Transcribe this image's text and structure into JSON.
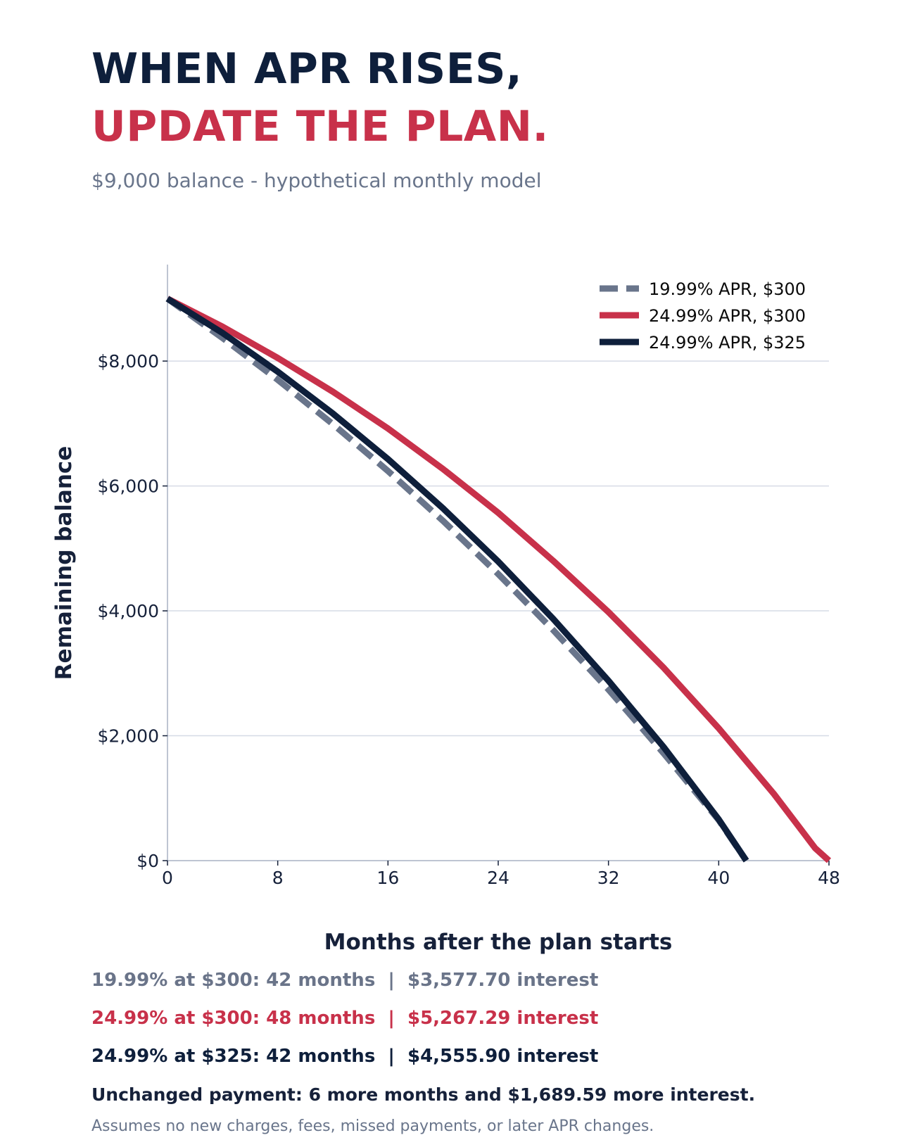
{
  "header": {
    "title_line1": "WHEN APR RISES,",
    "title_line2": "UPDATE THE PLAN.",
    "subtitle": "$9,000 balance - hypothetical monthly model"
  },
  "colors": {
    "navy": "#0e1f3b",
    "red": "#c8314a",
    "slate": "#69758b"
  },
  "chart_data": {
    "type": "line",
    "xlabel": "Months after the plan starts",
    "ylabel": "Remaining balance",
    "xlim": [
      0,
      48
    ],
    "ylim": [
      0,
      9500
    ],
    "xticks": [
      0,
      8,
      16,
      24,
      32,
      40,
      48
    ],
    "xtick_labels": [
      "0",
      "8",
      "16",
      "24",
      "32",
      "40",
      "48"
    ],
    "yticks": [
      0,
      2000,
      4000,
      6000,
      8000
    ],
    "ytick_labels": [
      "$0",
      "$2,000",
      "$4,000",
      "$6,000",
      "$8,000"
    ],
    "grid": "horizontal",
    "legend_position": "top-right",
    "series": [
      {
        "name": "19.99% APR, $300",
        "color": "#69758b",
        "style": "dashed",
        "x": [
          0,
          4,
          8,
          12,
          16,
          20,
          24,
          28,
          32,
          36,
          40,
          42
        ],
        "y": [
          9000,
          8370,
          7700,
          6990,
          6240,
          5440,
          4590,
          3690,
          2740,
          1720,
          650,
          0
        ]
      },
      {
        "name": "24.99% APR, $300",
        "color": "#c8314a",
        "style": "solid",
        "x": [
          0,
          4,
          8,
          12,
          16,
          20,
          24,
          28,
          32,
          36,
          40,
          44,
          47,
          48
        ],
        "y": [
          9000,
          8550,
          8050,
          7510,
          6920,
          6270,
          5570,
          4800,
          3980,
          3090,
          2120,
          1070,
          200,
          0
        ]
      },
      {
        "name": "24.99% APR, $325",
        "color": "#0e1f3b",
        "style": "solid",
        "x": [
          0,
          4,
          8,
          12,
          16,
          20,
          24,
          28,
          32,
          36,
          40,
          42
        ],
        "y": [
          9000,
          8450,
          7830,
          7160,
          6430,
          5640,
          4790,
          3870,
          2880,
          1820,
          660,
          0
        ]
      }
    ]
  },
  "summary": {
    "line1": "19.99% at $300: 42 months  |  $3,577.70 interest",
    "line2": "24.99% at $300: 48 months  |  $5,267.29 interest",
    "line3": "24.99% at $325: 42 months  |  $4,555.90 interest",
    "conclusion": "Unchanged payment: 6 more months and $1,689.59 more interest.",
    "note": "Assumes no new charges, fees, missed payments, or later APR changes."
  }
}
